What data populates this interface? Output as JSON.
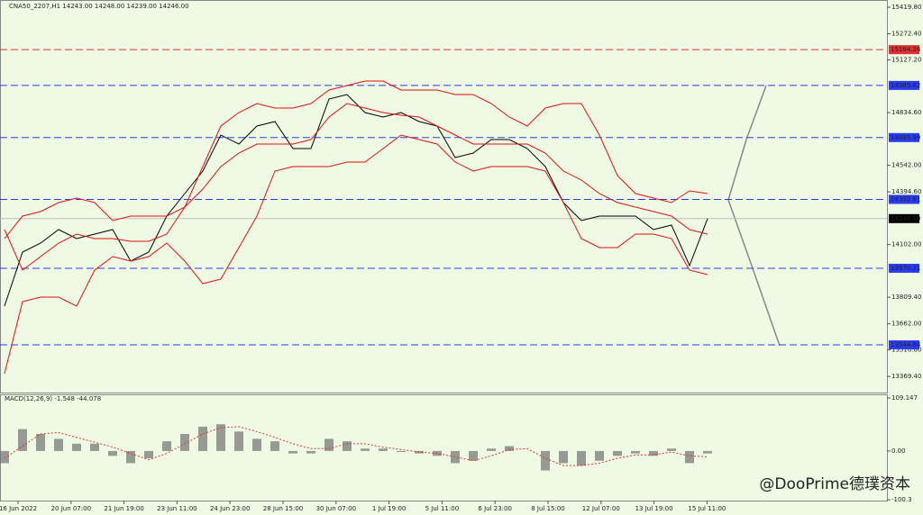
{
  "header": "CNA50_2207,H1  14243.00 14248.00 14239.00 14246.00",
  "watermark": "@DooPrime德璞资本",
  "x_axis": {
    "labels": [
      "16 Jun 2022",
      "20 Jun 07:00",
      "21 Jun 19:00",
      "23 Jun 11:00",
      "24 Jun 23:00",
      "28 Jun 15:00",
      "30 Jun 07:00",
      "1 Jul 19:00",
      "5 Jul 11:00",
      "6 Jul 23:00",
      "8 Jul 15:00",
      "12 Jul 07:00",
      "13 Jul 19:00",
      "15 Jul 11:00"
    ]
  },
  "chart_data": [
    {
      "type": "line",
      "ylim": [
        13280,
        15460
      ],
      "yticks": [
        {
          "value": 15419.8,
          "label": "15419.80"
        },
        {
          "value": 15272.4,
          "label": "15272.40"
        },
        {
          "value": 15127.2,
          "label": "15127.20"
        },
        {
          "value": 14834.6,
          "label": "14834.60"
        },
        {
          "value": 14542,
          "label": "14542.00"
        },
        {
          "value": 14394.6,
          "label": "14394.60"
        },
        {
          "value": 14102,
          "label": "14102.00"
        },
        {
          "value": 13809.4,
          "label": "13809.40"
        },
        {
          "value": 13662,
          "label": "13662.00"
        },
        {
          "value": 13516.8,
          "label": "13516.80"
        },
        {
          "value": 13369.4,
          "label": "13369.40"
        }
      ],
      "current": {
        "value": 14246,
        "label": "14246.00"
      },
      "levels": [
        {
          "value": 15184.26,
          "color": "#e03030"
        },
        {
          "value": 14985.62,
          "color": "#2a3cf0"
        },
        {
          "value": 14695.99,
          "color": "#2a3cf0"
        },
        {
          "value": 14352.61,
          "color": "#2a3cf0"
        },
        {
          "value": 13970.21,
          "color": "#2a3cf0"
        },
        {
          "value": 13544.84,
          "color": "#2a3cf0"
        }
      ],
      "series": [
        {
          "color": "#000000",
          "values": [
            13760,
            14060,
            14110,
            14185,
            14135,
            14160,
            14185,
            14010,
            14060,
            14260,
            14385,
            14510,
            14710,
            14660,
            14760,
            14785,
            14635,
            14635,
            14910,
            14935,
            14835,
            14810,
            14835,
            14785,
            14760,
            14585,
            14610,
            14685,
            14685,
            14635,
            14535,
            14335,
            14235,
            14260,
            14260,
            14260,
            14185,
            14210,
            13985,
            14246
          ]
        },
        {
          "color": "#e01010",
          "values": [
            14135,
            14260,
            14285,
            14335,
            14360,
            14335,
            14235,
            14260,
            14260,
            14260,
            14310,
            14535,
            14760,
            14835,
            14885,
            14860,
            14860,
            14885,
            14960,
            14985,
            15010,
            15010,
            14960,
            14960,
            14960,
            14935,
            14935,
            14885,
            14810,
            14760,
            14860,
            14885,
            14885,
            14710,
            14485,
            14385,
            14360,
            14335,
            14400,
            14385
          ]
        },
        {
          "color": "#e01010",
          "values": [
            14185,
            13960,
            14035,
            14110,
            14160,
            14135,
            14135,
            14120,
            14120,
            14160,
            14310,
            14410,
            14535,
            14610,
            14660,
            14660,
            14660,
            14685,
            14810,
            14885,
            14860,
            14835,
            14820,
            14810,
            14760,
            14710,
            14660,
            14660,
            14660,
            14660,
            14610,
            14510,
            14460,
            14385,
            14335,
            14310,
            14285,
            14260,
            14185,
            14160
          ]
        },
        {
          "color": "#e01010",
          "values": [
            13385,
            13785,
            13810,
            13810,
            13760,
            13960,
            14035,
            14010,
            14035,
            14110,
            14010,
            13885,
            13910,
            14085,
            14260,
            14510,
            14535,
            14535,
            14535,
            14560,
            14560,
            14635,
            14710,
            14685,
            14660,
            14560,
            14510,
            14535,
            14535,
            14535,
            14510,
            14335,
            14135,
            14085,
            14085,
            14160,
            14160,
            14135,
            13960,
            13935
          ]
        }
      ]
    },
    {
      "type": "macd",
      "title": "MACD(12,26,9) -1.548 -44.078",
      "ylim": [
        -102,
        116.5
      ],
      "yticks": [
        109.147,
        {
          "value": 0,
          "label": "0.00"
        },
        -100.3
      ],
      "histogram": {
        "color": "#707070",
        "values": [
          -25,
          45,
          35,
          25,
          15,
          15,
          -10,
          -25,
          -15,
          20,
          35,
          50,
          55,
          40,
          25,
          20,
          -5,
          -5,
          25,
          20,
          5,
          5,
          -2,
          -5,
          -10,
          -25,
          -20,
          5,
          10,
          0,
          -40,
          -25,
          -30,
          -20,
          -10,
          -5,
          -10,
          5,
          -25,
          -5
        ]
      },
      "signal": {
        "color": "#e03030",
        "values": [
          -15,
          10,
          35,
          38,
          28,
          18,
          8,
          -5,
          -18,
          -5,
          15,
          35,
          48,
          50,
          40,
          28,
          15,
          5,
          5,
          15,
          15,
          8,
          3,
          -2,
          -5,
          -12,
          -20,
          -10,
          3,
          5,
          -15,
          -30,
          -30,
          -25,
          -15,
          -8,
          -8,
          -2,
          -10,
          -12
        ]
      }
    }
  ]
}
